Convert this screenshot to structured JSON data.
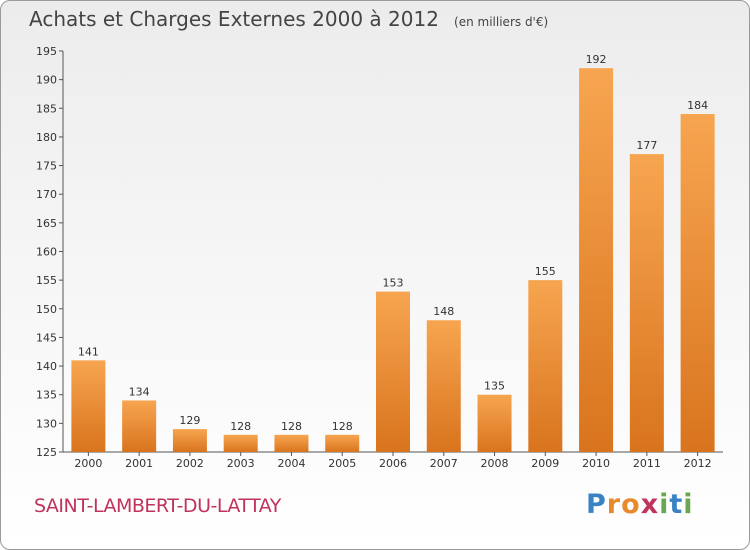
{
  "header": {
    "title": "Achats et Charges Externes 2000 à 2012",
    "unit": "(en milliers d'€)"
  },
  "footer": {
    "commune": "SAINT-LAMBERT-DU-LATTAY",
    "logo_letters": [
      "P",
      "r",
      "o",
      "x",
      "i",
      "t",
      "i"
    ],
    "logo_colors": [
      "#3b82c4",
      "#e8892b",
      "#e8892b",
      "#c0335a",
      "#6aa84f",
      "#3b82c4",
      "#6aa84f"
    ]
  },
  "chart_data": {
    "type": "bar",
    "title": "Achats et Charges Externes 2000 à 2012",
    "subtitle": "(en milliers d'€)",
    "xlabel": "",
    "ylabel": "",
    "categories": [
      "2000",
      "2001",
      "2002",
      "2003",
      "2004",
      "2005",
      "2006",
      "2007",
      "2008",
      "2009",
      "2010",
      "2011",
      "2012"
    ],
    "values": [
      141,
      134,
      129,
      128,
      128,
      128,
      153,
      148,
      135,
      155,
      192,
      177,
      184
    ],
    "ylim": [
      125,
      195
    ],
    "yticks": [
      125,
      130,
      135,
      140,
      145,
      150,
      155,
      160,
      165,
      170,
      175,
      180,
      185,
      190,
      195
    ],
    "grid": false,
    "legend": "none",
    "bar_color_light": "#f7a550",
    "bar_color_dark": "#d9741e"
  }
}
